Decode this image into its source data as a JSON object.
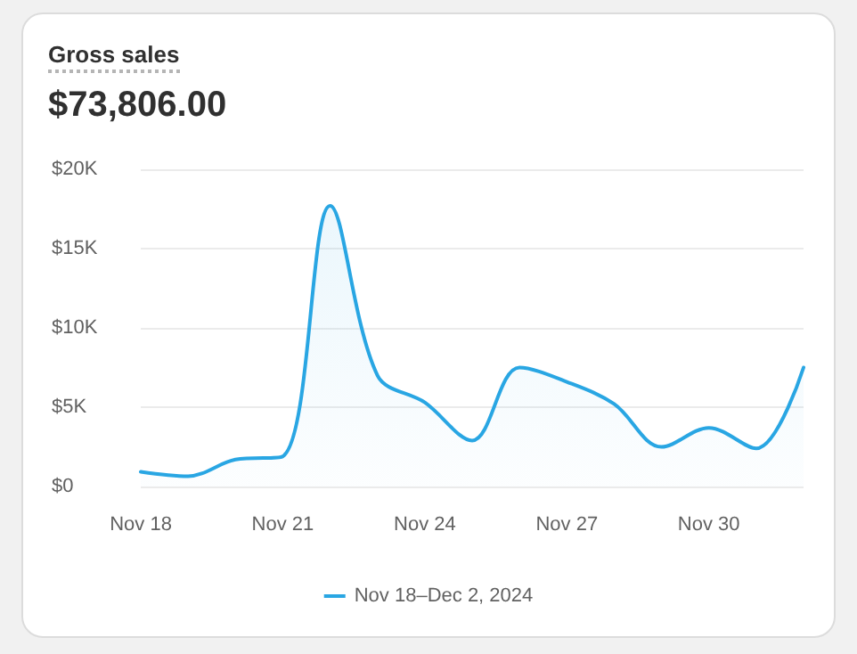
{
  "chart_data": {
    "type": "area",
    "title": "Gross sales",
    "subtitle": "$73,806.00",
    "categories": [
      "Nov 18",
      null,
      null,
      "Nov 21",
      null,
      null,
      "Nov 24",
      null,
      null,
      "Nov 27",
      null,
      null,
      "Nov 30",
      null,
      null
    ],
    "series": [
      {
        "name": "Nov 18–Dec 2, 2024",
        "color": "#29a6e3",
        "values": [
          930,
          650,
          1700,
          1900,
          17700,
          7000,
          5300,
          2900,
          7500,
          6600,
          5200,
          2500,
          3700,
          2400,
          7500
        ]
      }
    ],
    "ylim": [
      0,
      20000
    ],
    "yticks": [
      {
        "value": 0,
        "label": "$0"
      },
      {
        "value": 5000,
        "label": "$5K"
      },
      {
        "value": 10000,
        "label": "$10K"
      },
      {
        "value": 15000,
        "label": "$15K"
      },
      {
        "value": 20000,
        "label": "$20K"
      }
    ],
    "grid": "y",
    "legend": "bottom",
    "marker": "none",
    "line_style": "solid"
  }
}
